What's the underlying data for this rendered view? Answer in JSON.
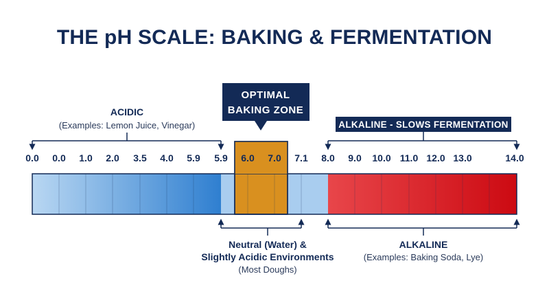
{
  "title": "THE pH SCALE: BAKING & FERMENTATION",
  "ticks": [
    "0.0",
    "0.0",
    "1.0",
    "2.0",
    "3.5",
    "4.0",
    "5.9",
    "5.9",
    "6.0",
    "7.0",
    "7.1",
    "8.0",
    "9.0",
    "10.0",
    "11.0",
    "12.0",
    "13.0",
    "14.0"
  ],
  "acidic": {
    "heading": "ACIDIC",
    "examples": "(Examples: Lemon Juice, Vinegar)"
  },
  "optimal": {
    "line1": "OPTIMAL",
    "line2": "BAKING ZONE"
  },
  "alkaline_banner": "ALKALINE - SLOWS FERMENTATION",
  "neutral": {
    "line1": "Neutral (Water) &",
    "line2": "Slightly Acidic Environments",
    "line3": "(Most Doughs)"
  },
  "alkaline": {
    "heading": "ALKALINE",
    "examples": "(Examples: Baking Soda, Lye)"
  },
  "colors": {
    "navy": "#132a56",
    "acid_dark": "#2f7fd0",
    "acid_light": "#b9d7f2",
    "neutral": "#a9cdef",
    "optimal": "#d9901f",
    "alkaline_light": "#e8464a",
    "alkaline_dark": "#cc0a12"
  }
}
